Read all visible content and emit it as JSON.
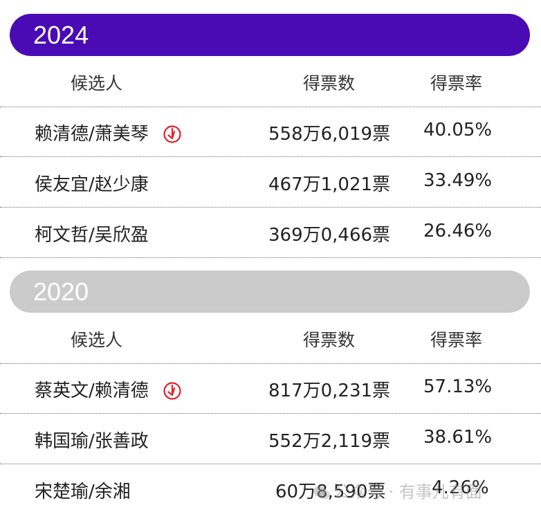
{
  "elections": [
    {
      "year": "2024",
      "headers": {
        "candidate": "候选人",
        "votes": "得票数",
        "rate": "得票率"
      },
      "rows": [
        {
          "candidate": "赖清德/萧美琴",
          "votes": "558万6,019票",
          "rate": "40.05%",
          "winner": true
        },
        {
          "candidate": "侯友宜/赵少康",
          "votes": "467万1,021票",
          "rate": "33.49%",
          "winner": false
        },
        {
          "candidate": "柯文哲/吴欣盈",
          "votes": "369万0,466票",
          "rate": "26.46%",
          "winner": false
        }
      ]
    },
    {
      "year": "2020",
      "headers": {
        "candidate": "候选人",
        "votes": "得票数",
        "rate": "得票率"
      },
      "rows": [
        {
          "candidate": "蔡英文/赖清德",
          "votes": "817万0,231票",
          "rate": "57.13%",
          "winner": true
        },
        {
          "candidate": "韩国瑜/张善政",
          "votes": "552万2,119票",
          "rate": "38.61%",
          "winner": false
        },
        {
          "candidate": "宋楚瑜/余湘",
          "votes": "60万8,590票",
          "rate": "4.26%",
          "winner": false
        }
      ]
    }
  ],
  "colors": {
    "bar_2024": "#4a0bb5",
    "bar_2020": "#cbcbcb",
    "winner_mark": "#e0202a"
  },
  "icons": {
    "winner": "vote-stamp-icon"
  },
  "watermark": "公众号 · 有事儿有面"
}
